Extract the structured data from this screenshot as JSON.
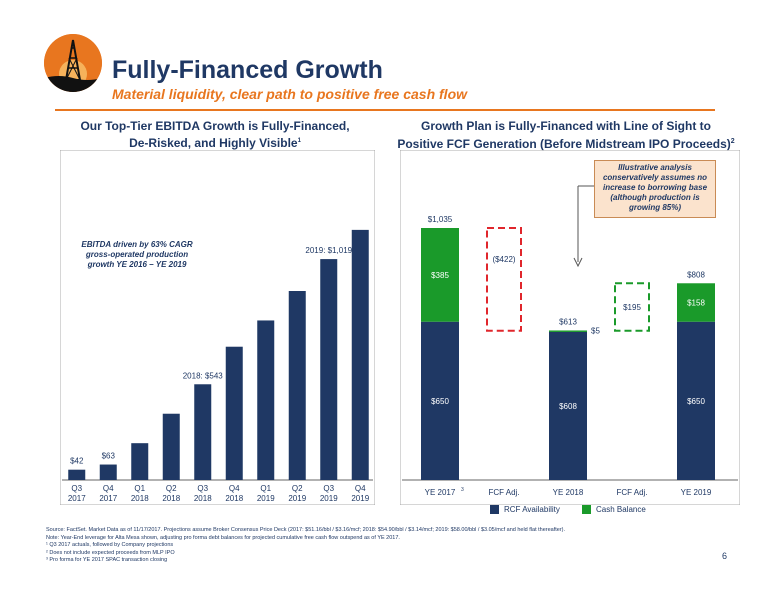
{
  "header": {
    "title": "Fully-Financed Growth",
    "subtitle": "Material liquidity, clear path to positive free cash flow"
  },
  "left_panel": {
    "title_line1": "Our Top-Tier EBITDA Growth is Fully-Financed,",
    "title_line2": "De-Risked, and Highly Visible",
    "title_sup": "1",
    "annotation_line1": "EBITDA driven by 63% CAGR",
    "annotation_line2": "gross-operated production",
    "annotation_line3": "growth YE 2016 – YE 2019"
  },
  "right_panel": {
    "title_line1": "Growth Plan is Fully-Financed with Line of Sight to",
    "title_line2": "Positive FCF Generation (Before Midstream IPO Proceeds)",
    "title_sup": "2",
    "callout_line1": "Illustrative analysis",
    "callout_line2": "conservatively assumes no",
    "callout_line3": "increase to borrowing base",
    "callout_line4": "(although production is",
    "callout_line5": "growing 85%)",
    "legend_rcf": "RCF Availability",
    "legend_cash": "Cash Balance"
  },
  "chart_data": [
    {
      "type": "bar",
      "categories": [
        "Q3 2017",
        "Q4 2017",
        "Q1 2018",
        "Q2 2018",
        "Q3 2018",
        "Q4 2018",
        "Q1 2019",
        "Q2 2019",
        "Q3 2019",
        "Q4 2019"
      ],
      "category_lines": [
        [
          "Q3",
          "2017"
        ],
        [
          "Q4",
          "2017"
        ],
        [
          "Q1",
          "2018"
        ],
        [
          "Q2",
          "2018"
        ],
        [
          "Q3",
          "2018"
        ],
        [
          "Q4",
          "2018"
        ],
        [
          "Q1",
          "2019"
        ],
        [
          "Q2",
          "2019"
        ],
        [
          "Q3",
          "2019"
        ],
        [
          "Q4",
          "2019"
        ]
      ],
      "values": [
        42,
        63,
        150,
        270,
        390,
        543,
        650,
        770,
        900,
        1019
      ],
      "data_labels": [
        "$42",
        "$63",
        "",
        "",
        "2018: $543",
        "",
        "",
        "",
        "2019: $1,019",
        ""
      ],
      "ylim": [
        0,
        1100
      ],
      "grid": false,
      "color": "#1f3864"
    },
    {
      "type": "bar",
      "subtype": "stacked-waterfall",
      "categories": [
        "YE 2017",
        "FCF Adj.",
        "YE 2018",
        "FCF Adj.",
        "YE 2019"
      ],
      "category_sup": [
        "3",
        "",
        "",
        "",
        ""
      ],
      "series": [
        {
          "name": "RCF Availability",
          "values": [
            650,
            0,
            608,
            0,
            650
          ],
          "color": "#1f3864"
        },
        {
          "name": "Cash Balance",
          "values": [
            385,
            0,
            5,
            0,
            158
          ],
          "color": "#1a9a2a"
        }
      ],
      "adjustments": [
        {
          "category": "FCF Adj.",
          "from": 1035,
          "to": 613,
          "label": "($422)",
          "color": "#e0262c"
        },
        {
          "category": "FCF Adj.",
          "from": 613,
          "to": 808,
          "label": "$195",
          "color": "#1a9a2a"
        }
      ],
      "totals": [
        "$1,035",
        "",
        "$613",
        "",
        "$808"
      ],
      "segment_labels": {
        "rcf": [
          "$650",
          "",
          "$608",
          "",
          "$650"
        ],
        "cash": [
          "$385",
          "",
          "$5",
          "",
          "$158"
        ]
      },
      "ylim": [
        0,
        1150
      ],
      "grid": false,
      "legend": "bottom"
    }
  ],
  "footer": {
    "source": "Source: FactSet. Market Data as of 11/17/2017. Projections assume Broker Consensus Price Deck (2017: $51.16/bbl / $3.16/mcf; 2018: $54.90/bbl / $3.14/mcf; 2019: $58.00/bbl / $3.05/mcf and held flat thereafter).",
    "note": "Note: Year-End leverage for Alta Mesa shown, adjusting pro forma debt balances for projected cumulative free cash flow outspend as of YE 2017.",
    "fn1": "¹ Q3 2017 actuals, followed by Company projections",
    "fn2": "² Does not include expected proceeds from MLP IPO",
    "fn3": "³ Pro forma for YE 2017 SPAC transaction closing",
    "page": "6"
  }
}
